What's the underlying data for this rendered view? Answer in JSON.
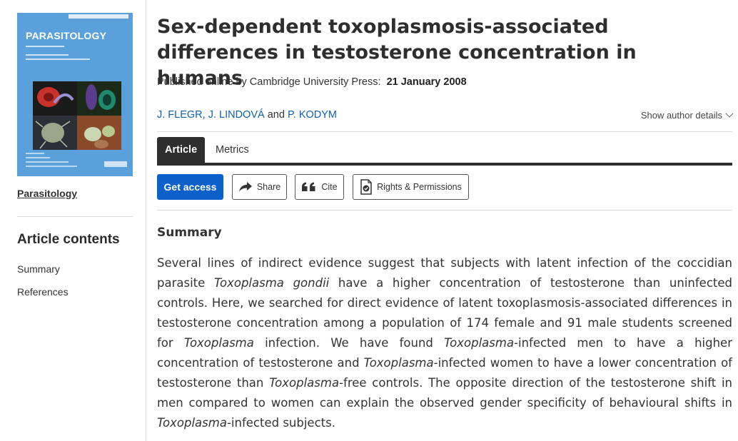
{
  "sidebar": {
    "cover": {
      "journal_name": "PARASITOLOGY",
      "alt": "Parasitology journal cover"
    },
    "journal_link": "Parasitology",
    "contents_title": "Article contents",
    "contents_items": [
      "Summary",
      "References"
    ]
  },
  "article": {
    "title": "Sex-dependent toxoplasmosis-associated differences in testosterone concentration in humans",
    "published_prefix": "Published online by Cambridge University Press:",
    "published_date": "21 January 2008",
    "authors": [
      "J. FLEGR,",
      "J. LINDOVÁ",
      "P. KODYM"
    ],
    "authors_conjunction": "and",
    "show_author_details": "Show author details"
  },
  "tabs": [
    {
      "label": "Article",
      "active": true
    },
    {
      "label": "Metrics",
      "active": false
    }
  ],
  "actions": {
    "get_access": "Get access",
    "share": "Share",
    "cite": "Cite",
    "rights": "Rights & Permissions"
  },
  "summary": {
    "heading": "Summary",
    "segments": [
      {
        "t": "Several lines of indirect evidence suggest that subjects with latent infection of the coccidian parasite ",
        "i": false
      },
      {
        "t": "Toxoplasma gondii",
        "i": true
      },
      {
        "t": " have a higher concentration of testosterone than uninfected controls. Here, we searched for direct evidence of latent toxoplasmosis-associated differences in testosterone concentration among a population of 174 female and 91 male students screened for ",
        "i": false
      },
      {
        "t": "Toxoplasma",
        "i": true
      },
      {
        "t": " infection. We have found ",
        "i": false
      },
      {
        "t": "Toxoplasma",
        "i": true
      },
      {
        "t": "-infected men to have a higher concentration of testosterone and ",
        "i": false
      },
      {
        "t": "Toxoplasma",
        "i": true
      },
      {
        "t": "-infected women to have a lower concentration of testosterone than ",
        "i": false
      },
      {
        "t": "Toxoplasma",
        "i": true
      },
      {
        "t": "-free controls. The opposite direction of the testosterone shift in men compared to women can explain the observed gender specificity of behavioural shifts in ",
        "i": false
      },
      {
        "t": "Toxoplasma",
        "i": true
      },
      {
        "t": "-infected subjects.",
        "i": false
      }
    ]
  },
  "colors": {
    "link": "#0e5fae",
    "primary_button": "#0c61c9",
    "tab_active": "#2e2e2e",
    "cover_blue": "#5aa1dc"
  },
  "icons": {
    "share": "share-arrow-icon",
    "cite": "quote-icon",
    "rights": "document-check-icon",
    "author_details": "chevron-down-icon"
  }
}
